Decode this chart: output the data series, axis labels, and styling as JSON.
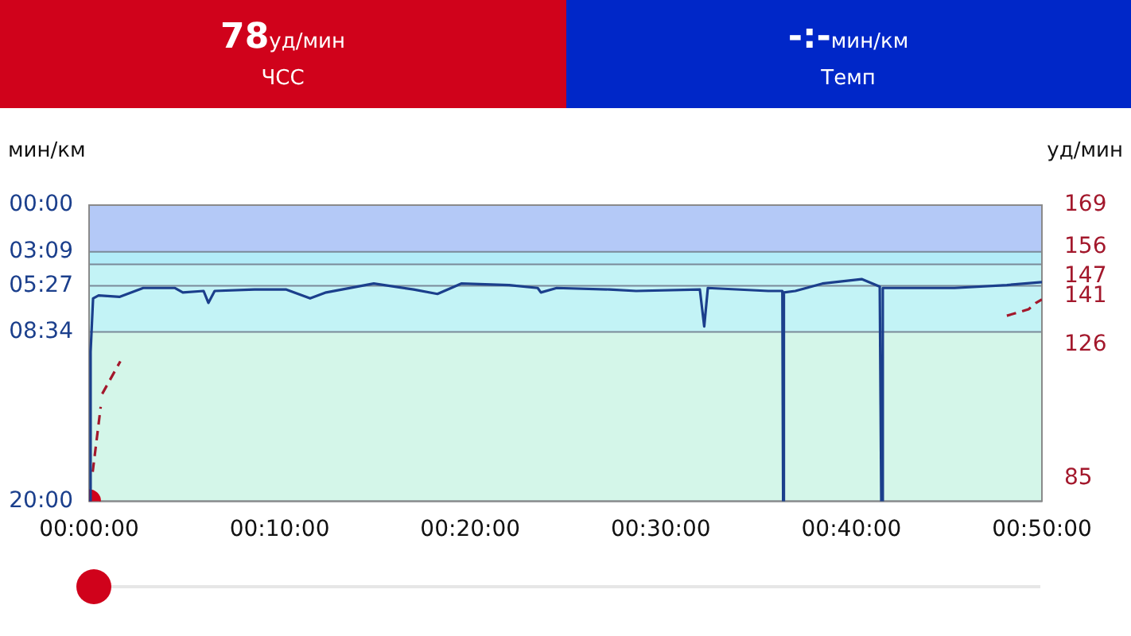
{
  "chart_data": {
    "type": "line",
    "ylabel": "мин/км",
    "y2label": "уд/мин",
    "annotations": [
      "78",
      "уд/мин",
      "ЧСС",
      "-:-",
      "мин/км",
      "Темп"
    ],
    "xlim": [
      0,
      50
    ],
    "xticks": [
      {
        "value": 0,
        "label": "00:00:00"
      },
      {
        "value": 10,
        "label": "00:10:00"
      },
      {
        "value": 20,
        "label": "00:20:00"
      },
      {
        "value": 30,
        "label": "00:30:00"
      },
      {
        "value": 40,
        "label": "00:40:00"
      },
      {
        "value": 50,
        "label": "00:50:00"
      }
    ],
    "ylim": [
      20,
      0
    ],
    "yticks": [
      {
        "value": 0,
        "label": "00:00"
      },
      {
        "value": 3.15,
        "label": "03:09"
      },
      {
        "value": 5.45,
        "label": "05:27"
      },
      {
        "value": 8.57,
        "label": "08:34"
      },
      {
        "value": 20,
        "label": "20:00"
      }
    ],
    "y2lim": [
      78,
      169
    ],
    "y2ticks": [
      169,
      156,
      147,
      141,
      126,
      85
    ],
    "grid": "y",
    "legend": false,
    "marker": "none",
    "bands": [
      {
        "axis": "y",
        "from": 0,
        "to": 3.15,
        "color": "#b4c9f7"
      },
      {
        "axis": "y",
        "from": 3.15,
        "to": 4.0,
        "color": "#b2ecf8"
      },
      {
        "axis": "y",
        "from": 4.0,
        "to": 8.57,
        "color": "#c3f3f6"
      },
      {
        "axis": "y",
        "from": 8.57,
        "to": 20,
        "color": "#d4f6e9"
      }
    ],
    "ref_lines": [
      {
        "axis": "y",
        "value": 4.0,
        "color": "#7a8a99"
      }
    ],
    "series": [
      {
        "color": "#1b3f8c",
        "line_style": "solid",
        "x": [
          0,
          0.08,
          0.21,
          0.5,
          1.59,
          2.84,
          4.51,
          4.92,
          6.01,
          6.26,
          6.59,
          8.68,
          10.35,
          11.6,
          12.44,
          14.94,
          17.03,
          18.28,
          19.53,
          22.04,
          23.54,
          23.71,
          24.54,
          27.3,
          28.71,
          32.05,
          32.28,
          32.47,
          35.64,
          36.38,
          36.42,
          36.46,
          37.06,
          38.48,
          40.54,
          41.49,
          41.57,
          41.65,
          42.65,
          45.41,
          48.16,
          50
        ],
        "values": [
          20,
          9.9,
          6.3,
          6.1,
          6.2,
          5.6,
          5.6,
          5.9,
          5.8,
          6.6,
          5.8,
          5.7,
          5.7,
          6.3,
          5.9,
          5.3,
          5.7,
          6.0,
          5.3,
          5.4,
          5.6,
          5.9,
          5.6,
          5.7,
          5.8,
          5.7,
          8.2,
          5.6,
          5.8,
          5.8,
          20,
          5.9,
          5.8,
          5.3,
          5.0,
          5.5,
          20,
          5.6,
          5.6,
          5.6,
          5.4,
          5.2
        ]
      },
      {
        "color": "#a3182c",
        "axis": "y2",
        "line_style": "dashed",
        "x": [
          0.19,
          0.61,
          0.65,
          0.69,
          1.64,
          20,
          48.16,
          48.75,
          49.3,
          49.7,
          50
        ],
        "values": [
          87,
          107,
          null,
          111,
          121,
          null,
          135,
          136,
          137,
          139,
          140
        ]
      },
      {
        "type": "scatter",
        "color": "#d0021b",
        "axis": "y2",
        "marker": "circle",
        "x": [
          0
        ],
        "values": [
          78
        ]
      }
    ]
  }
}
